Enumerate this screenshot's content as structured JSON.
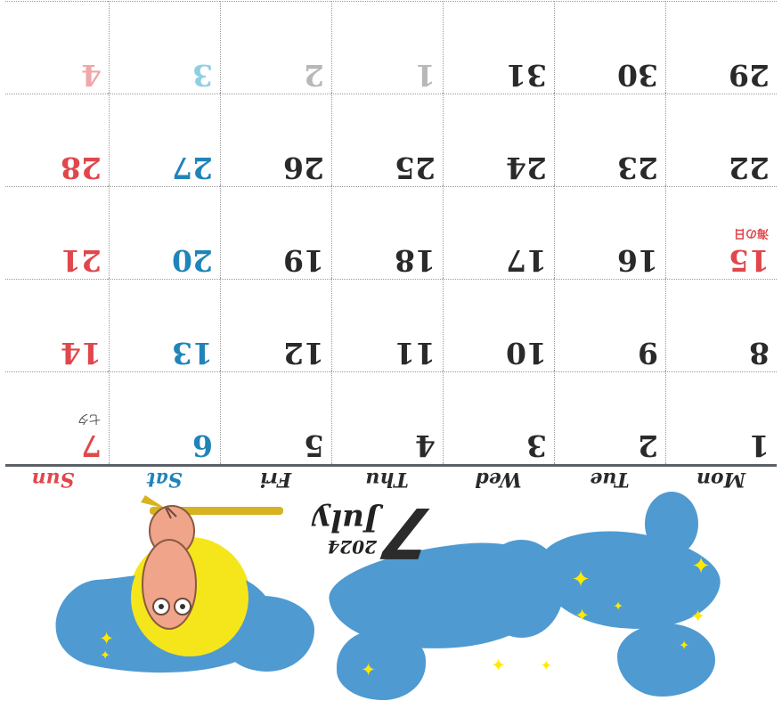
{
  "calendar": {
    "month_number": "7",
    "year": "2024",
    "month_name": "July",
    "weekdays": [
      {
        "label": "Mon",
        "color": "#2a2a2a"
      },
      {
        "label": "Tue",
        "color": "#2a2a2a"
      },
      {
        "label": "Wed",
        "color": "#2a2a2a"
      },
      {
        "label": "Thu",
        "color": "#2a2a2a"
      },
      {
        "label": "Fri",
        "color": "#2a2a2a"
      },
      {
        "label": "Sat",
        "color": "#1f84b8"
      },
      {
        "label": "Sun",
        "color": "#e0474c"
      }
    ],
    "weeks": [
      [
        {
          "day": "1",
          "tone": "dark"
        },
        {
          "day": "2",
          "tone": "dark"
        },
        {
          "day": "3",
          "tone": "dark"
        },
        {
          "day": "4",
          "tone": "dark"
        },
        {
          "day": "5",
          "tone": "dark"
        },
        {
          "day": "6",
          "tone": "blue"
        },
        {
          "day": "7",
          "tone": "red",
          "note": "七夕",
          "note_tone": "gray"
        }
      ],
      [
        {
          "day": "8",
          "tone": "dark"
        },
        {
          "day": "9",
          "tone": "dark"
        },
        {
          "day": "10",
          "tone": "dark"
        },
        {
          "day": "11",
          "tone": "dark"
        },
        {
          "day": "12",
          "tone": "dark"
        },
        {
          "day": "13",
          "tone": "blue"
        },
        {
          "day": "14",
          "tone": "red"
        }
      ],
      [
        {
          "day": "15",
          "tone": "red",
          "note": "海の日",
          "note_tone": "red"
        },
        {
          "day": "16",
          "tone": "dark"
        },
        {
          "day": "17",
          "tone": "dark"
        },
        {
          "day": "18",
          "tone": "dark"
        },
        {
          "day": "19",
          "tone": "dark"
        },
        {
          "day": "20",
          "tone": "blue"
        },
        {
          "day": "21",
          "tone": "red"
        }
      ],
      [
        {
          "day": "22",
          "tone": "dark"
        },
        {
          "day": "23",
          "tone": "dark"
        },
        {
          "day": "24",
          "tone": "dark"
        },
        {
          "day": "25",
          "tone": "dark"
        },
        {
          "day": "26",
          "tone": "dark"
        },
        {
          "day": "27",
          "tone": "blue"
        },
        {
          "day": "28",
          "tone": "red"
        }
      ],
      [
        {
          "day": "29",
          "tone": "dark"
        },
        {
          "day": "30",
          "tone": "dark"
        },
        {
          "day": "31",
          "tone": "dark"
        },
        {
          "day": "1",
          "tone": "lightgray"
        },
        {
          "day": "2",
          "tone": "lightgray"
        },
        {
          "day": "3",
          "tone": "lightblue"
        },
        {
          "day": "4",
          "tone": "lightred"
        }
      ]
    ]
  },
  "colors": {
    "blob_blue": "#4f9ad1",
    "moon_yellow": "#f5e51b",
    "sparkle_yellow": "#ffe900",
    "rule_gray": "#5b6166",
    "owl_body": "#f0a48a",
    "branch": "#d6b321"
  },
  "icons": {
    "illustration": "owl-on-branch-with-moon",
    "sparkles": "sparkle-icon"
  }
}
